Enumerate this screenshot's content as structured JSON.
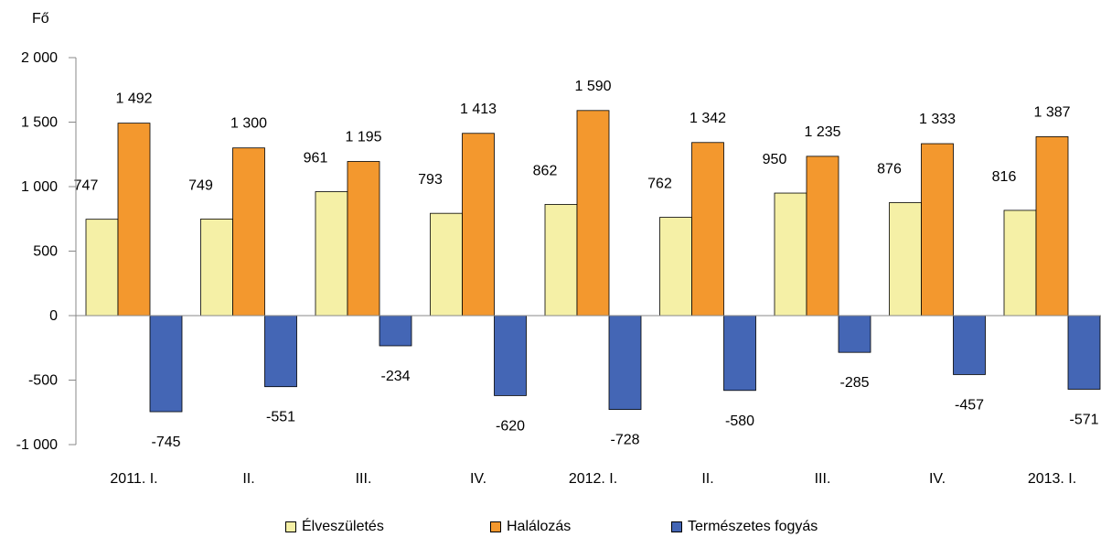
{
  "chart_data": {
    "type": "bar",
    "ylabel": "Fő",
    "ylim": [
      -1000,
      2000
    ],
    "yticks": [
      2000,
      1500,
      1000,
      500,
      0,
      -500,
      -1000
    ],
    "ytick_labels": [
      "2 000",
      "1 500",
      "1 000",
      "500",
      "0",
      "-500",
      "-1 000"
    ],
    "categories": [
      "2011. I.",
      "II.",
      "III.",
      "IV.",
      "2012. I.",
      "II.",
      "III.",
      "IV.",
      "2013. I."
    ],
    "grid": false,
    "legend_position": "bottom",
    "series": [
      {
        "name": "Élveszületés",
        "color": "#f5f0a6",
        "values": [
          747,
          749,
          961,
          793,
          862,
          762,
          950,
          876,
          816
        ],
        "labels": [
          "747",
          "749",
          "961",
          "793",
          "862",
          "762",
          "950",
          "876",
          "816"
        ]
      },
      {
        "name": "Halálozás",
        "color": "#f3982e",
        "values": [
          1492,
          1300,
          1195,
          1413,
          1590,
          1342,
          1235,
          1333,
          1387
        ],
        "labels": [
          "1 492",
          "1 300",
          "1 195",
          "1 413",
          "1 590",
          "1 342",
          "1 235",
          "1 333",
          "1 387"
        ]
      },
      {
        "name": "Természetes fogyás",
        "color": "#4466b5",
        "values": [
          -745,
          -551,
          -234,
          -620,
          -728,
          -580,
          -285,
          -457,
          -571
        ],
        "labels": [
          "-745",
          "-551",
          "-234",
          "-620",
          "-728",
          "-580",
          "-285",
          "-457",
          "-571"
        ]
      }
    ]
  }
}
